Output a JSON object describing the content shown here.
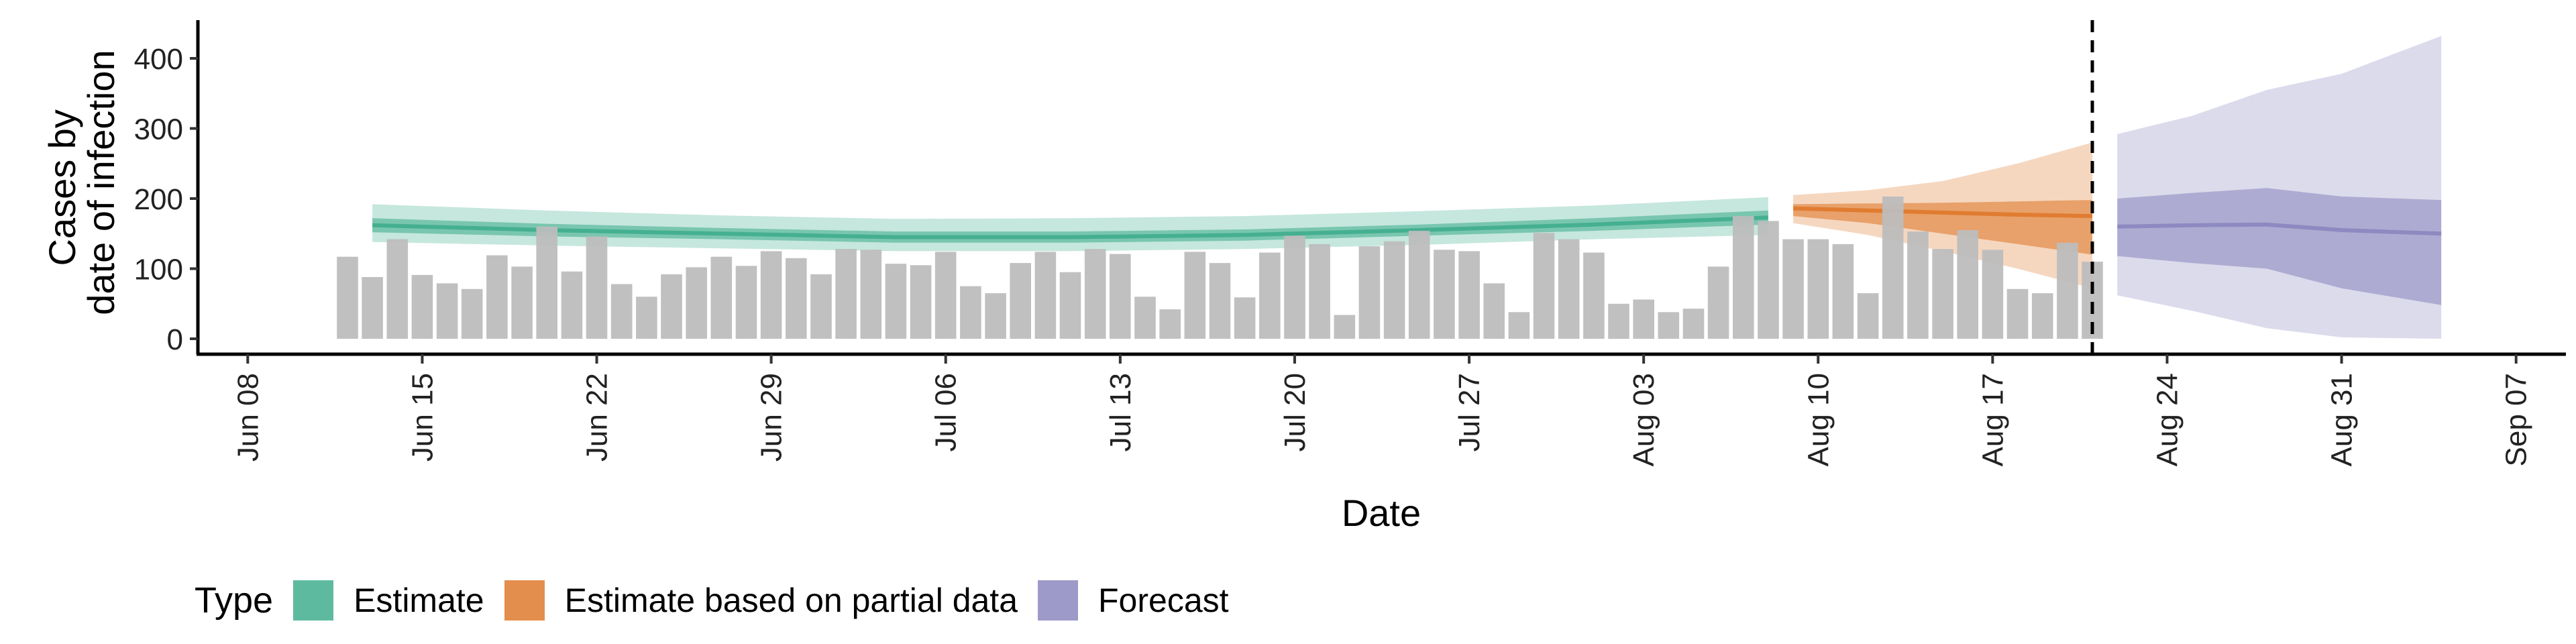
{
  "chart_data": {
    "type": "bar",
    "xlabel": "Date",
    "ylabel_lines": [
      "Cases by",
      "date of infection"
    ],
    "ylim": [
      0,
      450
    ],
    "xlim": [
      "2020-06-06",
      "2020-09-09"
    ],
    "yticks": [
      0,
      100,
      200,
      300,
      400
    ],
    "xticks": [
      {
        "date": "2020-06-08",
        "label": "Jun 08"
      },
      {
        "date": "2020-06-15",
        "label": "Jun 15"
      },
      {
        "date": "2020-06-22",
        "label": "Jun 22"
      },
      {
        "date": "2020-06-29",
        "label": "Jun 29"
      },
      {
        "date": "2020-07-06",
        "label": "Jul 06"
      },
      {
        "date": "2020-07-13",
        "label": "Jul 13"
      },
      {
        "date": "2020-07-20",
        "label": "Jul 20"
      },
      {
        "date": "2020-07-27",
        "label": "Jul 27"
      },
      {
        "date": "2020-08-03",
        "label": "Aug 03"
      },
      {
        "date": "2020-08-10",
        "label": "Aug 10"
      },
      {
        "date": "2020-08-17",
        "label": "Aug 17"
      },
      {
        "date": "2020-08-24",
        "label": "Aug 24"
      },
      {
        "date": "2020-08-31",
        "label": "Aug 31"
      },
      {
        "date": "2020-09-07",
        "label": "Sep 07"
      }
    ],
    "bars": {
      "start_date": "2020-06-12",
      "color": "#bdbdbd",
      "values": [
        117,
        88,
        142,
        91,
        79,
        71,
        119,
        103,
        160,
        96,
        146,
        78,
        60,
        92,
        102,
        117,
        104,
        125,
        115,
        92,
        128,
        127,
        107,
        105,
        124,
        75,
        65,
        108,
        124,
        95,
        128,
        121,
        60,
        42,
        124,
        108,
        59,
        123,
        147,
        135,
        34,
        132,
        139,
        154,
        127,
        125,
        79,
        38,
        151,
        142,
        123,
        50,
        56,
        38,
        43,
        103,
        175,
        168,
        142,
        142,
        135,
        65,
        203,
        153,
        128,
        155,
        127,
        71,
        65,
        137,
        110
      ]
    },
    "vline_date": "2020-08-21",
    "series": [
      {
        "name": "Estimate",
        "color": "#1b9e77",
        "dates": [
          "2020-06-13",
          "2020-06-20",
          "2020-06-27",
          "2020-07-04",
          "2020-07-11",
          "2020-07-18",
          "2020-07-25",
          "2020-08-01",
          "2020-08-08"
        ],
        "median": [
          162,
          155,
          150,
          145,
          145,
          148,
          155,
          163,
          173
        ],
        "lower50": [
          152,
          146,
          142,
          137,
          137,
          140,
          147,
          154,
          163
        ],
        "upper50": [
          172,
          164,
          158,
          153,
          153,
          156,
          163,
          172,
          183
        ],
        "lower90": [
          138,
          133,
          129,
          125,
          125,
          128,
          134,
          142,
          148
        ],
        "upper90": [
          192,
          183,
          176,
          171,
          172,
          175,
          182,
          190,
          202
        ]
      },
      {
        "name": "Estimate based on partial data",
        "color": "#d95f02",
        "dates": [
          "2020-08-09",
          "2020-08-12",
          "2020-08-15",
          "2020-08-18",
          "2020-08-21"
        ],
        "median": [
          186,
          183,
          180,
          177,
          175
        ],
        "lower50": [
          175,
          165,
          150,
          135,
          120
        ],
        "upper50": [
          192,
          193,
          194,
          196,
          198
        ],
        "lower90": [
          165,
          148,
          125,
          100,
          72
        ],
        "upper90": [
          205,
          212,
          225,
          250,
          280
        ]
      },
      {
        "name": "Forecast",
        "color": "#7570b3",
        "dates": [
          "2020-08-22",
          "2020-08-25",
          "2020-08-28",
          "2020-08-31",
          "2020-09-04"
        ],
        "median": [
          160,
          162,
          163,
          155,
          150
        ],
        "lower50": [
          118,
          108,
          100,
          72,
          48
        ],
        "upper50": [
          200,
          208,
          215,
          203,
          198
        ],
        "lower90": [
          62,
          40,
          15,
          2,
          0
        ],
        "upper90": [
          292,
          318,
          355,
          378,
          432
        ]
      }
    ],
    "legend": {
      "position": "bottom",
      "title": "Type",
      "entries": [
        "Estimate",
        "Estimate based on partial data",
        "Forecast"
      ]
    },
    "grid": false
  }
}
